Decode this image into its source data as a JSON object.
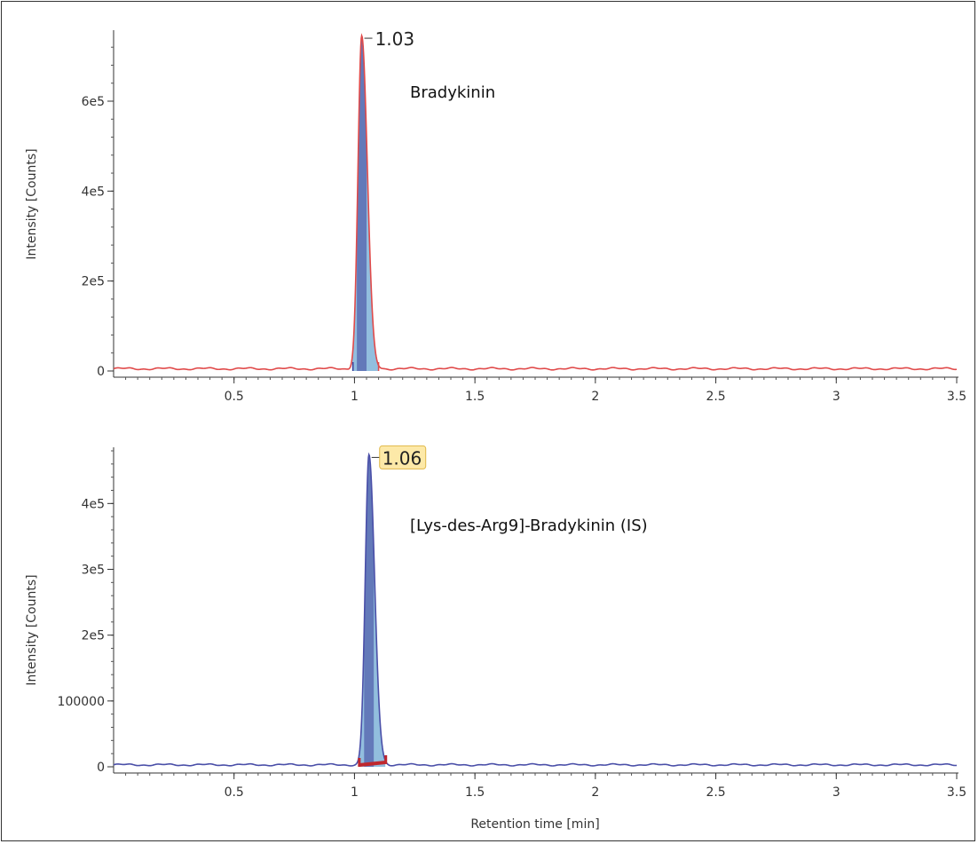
{
  "chart_data": [
    {
      "type": "line",
      "title": "Bradykinin",
      "ylabel": "Intensity [Counts]",
      "xlabel": "",
      "xlim": [
        0,
        3.5
      ],
      "ylim": [
        0,
        750000
      ],
      "x_ticks": [
        0.5,
        1,
        1.5,
        2,
        2.5,
        3,
        3.5
      ],
      "x_tick_labels": [
        "0.5",
        "1",
        "1.5",
        "2",
        "2.5",
        "3",
        "3.5"
      ],
      "y_ticks": [
        0,
        200000,
        400000,
        600000
      ],
      "y_tick_labels": [
        "0",
        "2e5",
        "4e5",
        "6e5"
      ],
      "peak": {
        "rt": 1.03,
        "height": 740000,
        "start": 0.99,
        "end": 1.1,
        "label": "1.03",
        "highlighted": false
      },
      "baseline": 5000,
      "trace_color": "#e04a4a",
      "fill_color": "#7fb3d8",
      "apex_color": "#3c3f9a"
    },
    {
      "type": "line",
      "title": "[Lys-des-Arg9]-Bradykinin (IS)",
      "ylabel": "Intensity [Counts]",
      "xlabel": "Retention time [min]",
      "xlim": [
        0,
        3.5
      ],
      "ylim": [
        0,
        480000
      ],
      "x_ticks": [
        0.5,
        1,
        1.5,
        2,
        2.5,
        3,
        3.5
      ],
      "x_tick_labels": [
        "0.5",
        "1",
        "1.5",
        "2",
        "2.5",
        "3",
        "3.5"
      ],
      "y_ticks": [
        0,
        100000,
        200000,
        300000,
        400000
      ],
      "y_tick_labels": [
        "0",
        "100000",
        "2e5",
        "3e5",
        "4e5"
      ],
      "peak": {
        "rt": 1.06,
        "height": 470000,
        "start": 1.02,
        "end": 1.13,
        "label": "1.06",
        "highlighted": true
      },
      "baseline": 3000,
      "trace_color": "#4a4fa8",
      "fill_color": "#7fb3d8",
      "apex_color": "#3c3f9a",
      "integration_color": "#c0282e"
    }
  ]
}
